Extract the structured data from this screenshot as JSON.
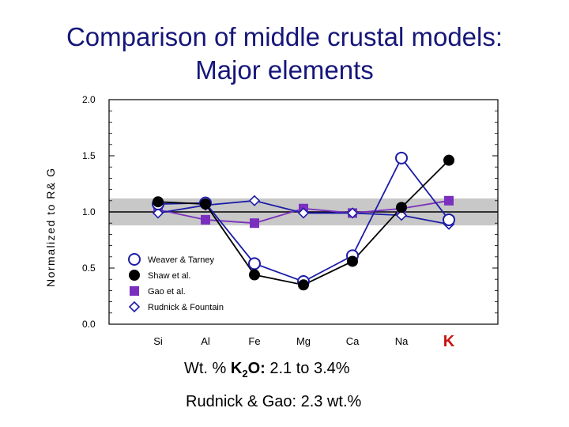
{
  "title_line1": "Comparison of middle crustal models:",
  "title_line2": "Major elements",
  "colors": {
    "title": "#16167a",
    "band": "#c8c8c8",
    "purple": "#7b2fbe",
    "blue": "#1c1ca8",
    "black": "#000000",
    "k_label": "#cc1111"
  },
  "note_line1": {
    "prefix": "Wt. % ",
    "bold": "K",
    "sub": "2",
    "bold2": "O:",
    "rest": " 2.1 to 3.4%"
  },
  "note_line2": "Rudnick & Gao:  2.3 wt.%",
  "chart_data": {
    "type": "line",
    "ylabel": "Normalized to R& G",
    "ylim": [
      0,
      2
    ],
    "yticks": [
      0,
      0.5,
      1,
      1.5,
      2
    ],
    "ytick_labels": [
      "0.0",
      "0.5",
      "1.0",
      "1.5",
      "2.0"
    ],
    "categories": [
      "Si",
      "Al",
      "Fe",
      "Mg",
      "Ca",
      "Na",
      "K"
    ],
    "reference_line": 1.0,
    "band": [
      0.88,
      1.12
    ],
    "series": [
      {
        "name": "Weaver & Tarney",
        "marker": "circle-open",
        "color": "#1c1ca8",
        "values": [
          1.07,
          1.08,
          0.54,
          0.38,
          0.61,
          1.48,
          0.93
        ]
      },
      {
        "name": "Shaw et al.",
        "marker": "circle-filled",
        "color": "#000000",
        "values": [
          1.09,
          1.07,
          0.44,
          0.35,
          0.56,
          1.04,
          1.46
        ]
      },
      {
        "name": "Gao et al.",
        "marker": "square-filled",
        "color": "#7b2fbe",
        "values": [
          1.02,
          0.93,
          0.9,
          1.03,
          0.99,
          1.03,
          1.1
        ]
      },
      {
        "name": "Rudnick & Fountain",
        "marker": "diamond-open",
        "color": "#1c1ca8",
        "values": [
          0.99,
          1.06,
          1.1,
          0.99,
          0.99,
          0.97,
          0.89
        ]
      }
    ]
  }
}
